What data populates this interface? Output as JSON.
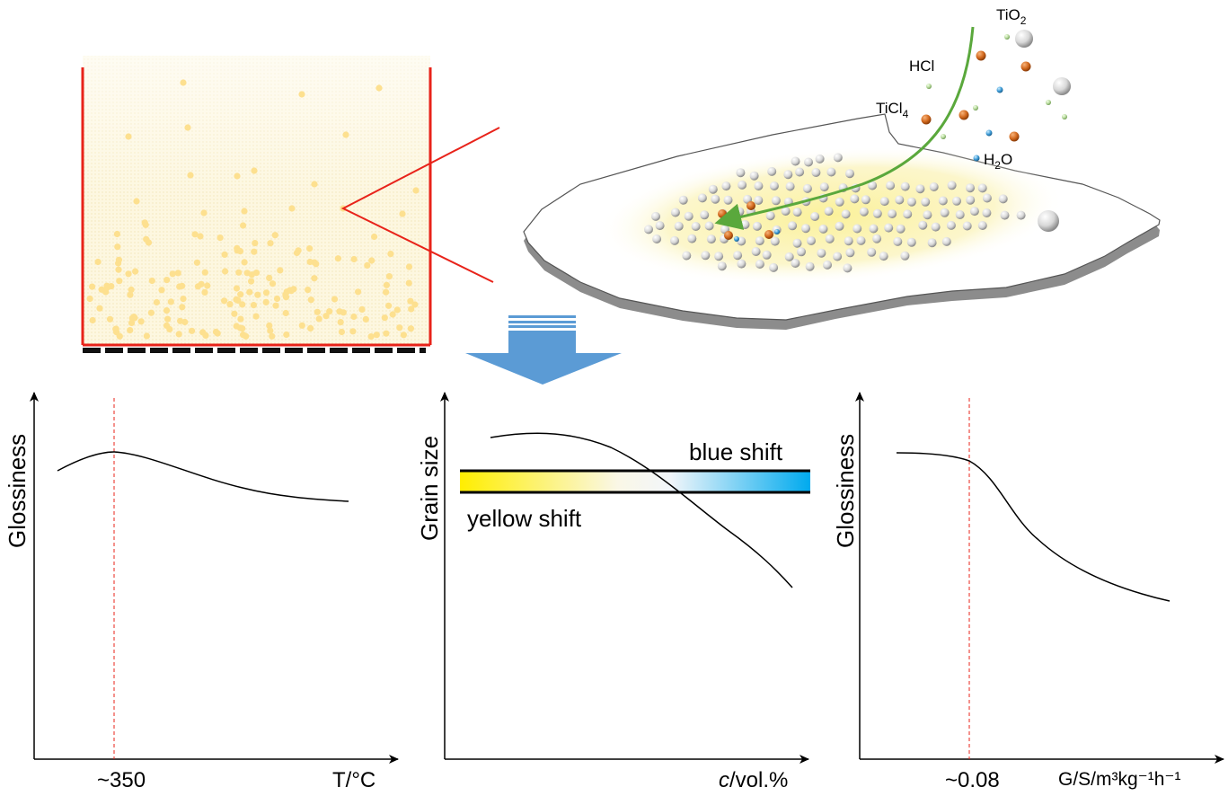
{
  "reactor": {
    "wall_color": "#e8231a",
    "particle_color": "#fde08f",
    "fill_color": "#fdf6dc"
  },
  "flake": {
    "species": {
      "tio2": {
        "base": "TiO",
        "sub": "2"
      },
      "hcl": {
        "text": "HCl"
      },
      "ticl4": {
        "base": "TiCl",
        "sub": "4"
      },
      "h2o": {
        "base": "H",
        "sub": "2",
        "tail": "O"
      }
    },
    "arrow_color": "#5aa83c",
    "coating_color": "#fbf3b0"
  },
  "process_arrow": {
    "color": "#5b9bd5"
  },
  "panels": {
    "temperature": {
      "ylabel": "Glossiness",
      "xlabel": "T/°C",
      "marker_label": "~350",
      "marker_color": "#e8231a"
    },
    "concentration": {
      "ylabel": "Grain size",
      "xlabel_italic": "c",
      "xlabel_rest": "/vol.%",
      "bar_top_label": "blue shift",
      "bar_bottom_label": "yellow shift",
      "gradient_start": "#ffee00",
      "gradient_end": "#00aaee"
    },
    "flow": {
      "ylabel": "Glossiness",
      "xlabel": "G/S/m³kg⁻¹h⁻¹",
      "marker_label": "~0.08",
      "marker_color": "#e8231a"
    }
  }
}
